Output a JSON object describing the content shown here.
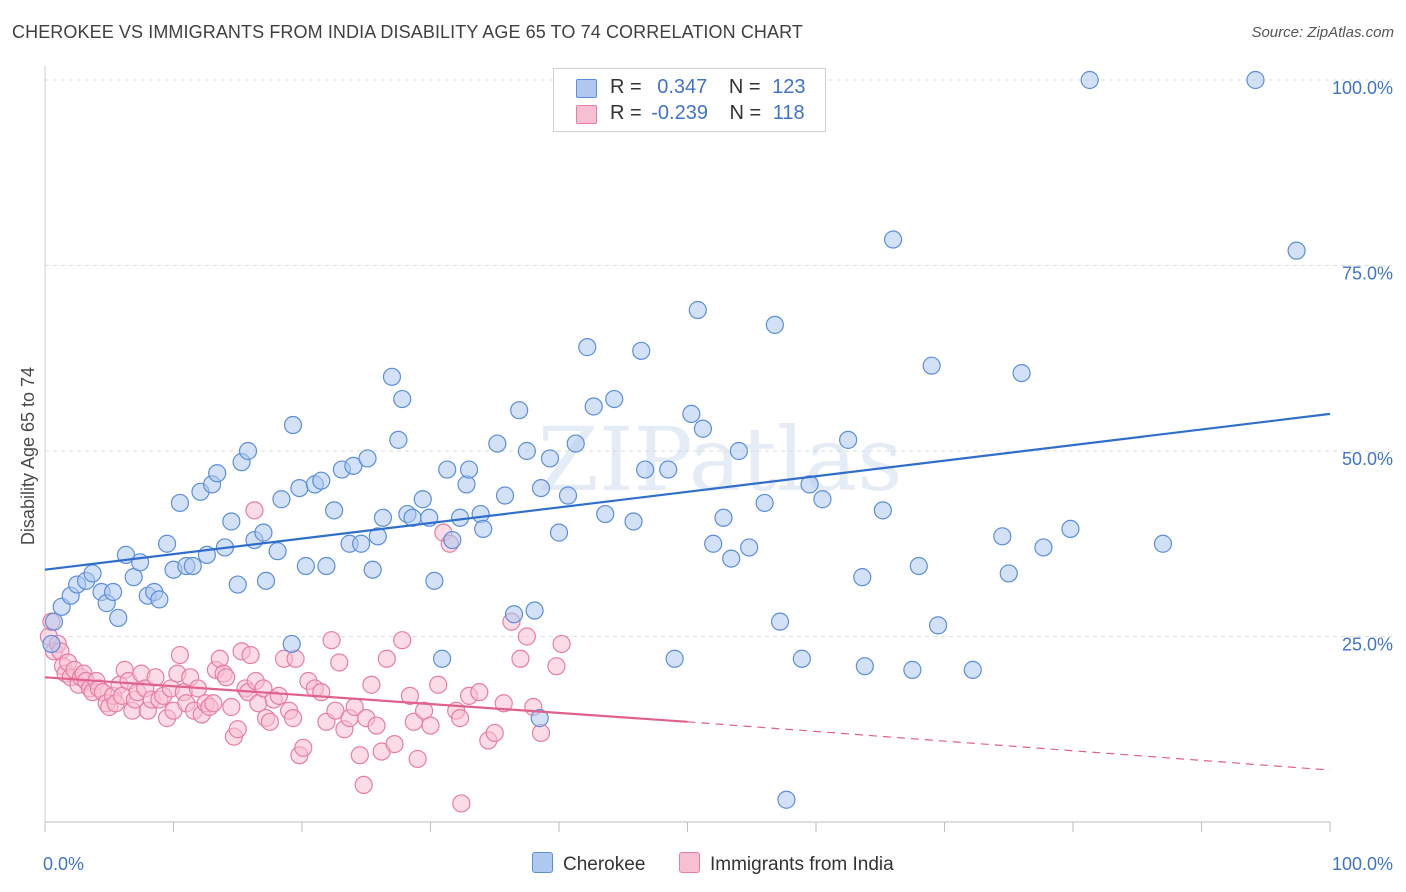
{
  "title": "CHEROKEE VS IMMIGRANTS FROM INDIA DISABILITY AGE 65 TO 74 CORRELATION CHART",
  "source": "Source: ZipAtlas.com",
  "watermark": "ZIPatlas",
  "legend": {
    "rows": [
      {
        "r_label": "R =",
        "r_value": "0.347",
        "n_label": "N =",
        "n_value": "123"
      },
      {
        "r_label": "R =",
        "r_value": "-0.239",
        "n_label": "N =",
        "n_value": "118"
      }
    ]
  },
  "colors": {
    "cherokee_fill": "#aec8f0",
    "cherokee_stroke": "#5b8fd8",
    "cherokee_line": "#2f6fcb",
    "india_fill": "#f7bfd2",
    "india_stroke": "#e77da3",
    "india_line": "#e0608e",
    "tick_text": "#3f74c8",
    "grid": "#dcdcdc"
  },
  "chart_data": {
    "type": "scatter",
    "title": "CHEROKEE VS IMMIGRANTS FROM INDIA DISABILITY AGE 65 TO 74 CORRELATION CHART",
    "xlabel": "",
    "ylabel": "Disability Age 65 to 74",
    "xlim": [
      0,
      100
    ],
    "ylim": [
      0,
      100
    ],
    "x_tick_labels": [
      "0.0%",
      "100.0%"
    ],
    "y_tick_labels": [
      "25.0%",
      "50.0%",
      "75.0%",
      "100.0%"
    ],
    "y_ticks": [
      25,
      50,
      75,
      100
    ],
    "grid": true,
    "legend_position": "top-center",
    "series": [
      {
        "name": "Cherokee",
        "R": 0.347,
        "N": 123,
        "trend": {
          "x": [
            0,
            100
          ],
          "y": [
            34.0,
            55.0
          ],
          "style": "solid"
        },
        "points": [
          [
            0.5,
            24
          ],
          [
            0.7,
            27
          ],
          [
            1.3,
            29
          ],
          [
            2,
            30.5
          ],
          [
            2.5,
            32
          ],
          [
            3.2,
            32.5
          ],
          [
            3.7,
            33.5
          ],
          [
            4.4,
            31
          ],
          [
            4.8,
            29.5
          ],
          [
            5.3,
            31
          ],
          [
            5.7,
            27.5
          ],
          [
            6.3,
            36
          ],
          [
            6.9,
            33
          ],
          [
            7.4,
            35
          ],
          [
            8,
            30.5
          ],
          [
            8.5,
            31
          ],
          [
            8.9,
            30
          ],
          [
            9.5,
            37.5
          ],
          [
            10,
            34
          ],
          [
            10.5,
            43
          ],
          [
            11,
            34.5
          ],
          [
            11.5,
            34.5
          ],
          [
            12.1,
            44.5
          ],
          [
            12.6,
            36
          ],
          [
            13,
            45.5
          ],
          [
            13.4,
            47
          ],
          [
            14,
            37
          ],
          [
            14.5,
            40.5
          ],
          [
            15,
            32
          ],
          [
            15.3,
            48.5
          ],
          [
            15.8,
            50
          ],
          [
            16.3,
            38
          ],
          [
            17,
            39
          ],
          [
            17.2,
            32.5
          ],
          [
            18.1,
            36.5
          ],
          [
            18.4,
            43.5
          ],
          [
            19.2,
            24
          ],
          [
            19.3,
            53.5
          ],
          [
            19.8,
            45
          ],
          [
            20.3,
            34.5
          ],
          [
            21,
            45.5
          ],
          [
            21.5,
            46
          ],
          [
            21.9,
            34.5
          ],
          [
            22.5,
            42
          ],
          [
            23.1,
            47.5
          ],
          [
            23.7,
            37.5
          ],
          [
            24,
            48
          ],
          [
            24.6,
            37.5
          ],
          [
            25.1,
            49
          ],
          [
            25.5,
            34
          ],
          [
            25.9,
            38.5
          ],
          [
            26.3,
            41
          ],
          [
            27,
            60
          ],
          [
            27.5,
            51.5
          ],
          [
            27.8,
            57
          ],
          [
            28.2,
            41.5
          ],
          [
            28.6,
            41
          ],
          [
            29.4,
            43.5
          ],
          [
            29.9,
            41
          ],
          [
            30.3,
            32.5
          ],
          [
            30.9,
            22
          ],
          [
            31.3,
            47.5
          ],
          [
            31.7,
            38
          ],
          [
            32.3,
            41
          ],
          [
            32.8,
            45.5
          ],
          [
            33,
            47.5
          ],
          [
            33.9,
            41.5
          ],
          [
            34.1,
            39.5
          ],
          [
            35.2,
            51
          ],
          [
            35.8,
            44
          ],
          [
            36.5,
            28
          ],
          [
            36.9,
            55.5
          ],
          [
            37.5,
            50
          ],
          [
            38.1,
            28.5
          ],
          [
            38.6,
            45
          ],
          [
            39.3,
            49
          ],
          [
            40,
            39
          ],
          [
            40.7,
            44
          ],
          [
            41.3,
            51
          ],
          [
            42.2,
            64
          ],
          [
            42.7,
            56
          ],
          [
            43.6,
            41.5
          ],
          [
            44.3,
            57
          ],
          [
            45.8,
            40.5
          ],
          [
            46.4,
            63.5
          ],
          [
            46.7,
            47.5
          ],
          [
            48.5,
            47.5
          ],
          [
            49,
            22
          ],
          [
            50.3,
            55
          ],
          [
            50.8,
            69
          ],
          [
            51.2,
            53
          ],
          [
            52,
            37.5
          ],
          [
            52.8,
            41
          ],
          [
            53.4,
            35.5
          ],
          [
            54,
            50
          ],
          [
            54.8,
            37
          ],
          [
            56,
            43
          ],
          [
            56.8,
            67
          ],
          [
            57.2,
            27
          ],
          [
            58.9,
            22
          ],
          [
            59.5,
            45.5
          ],
          [
            60.5,
            43.5
          ],
          [
            62.5,
            51.5
          ],
          [
            63.6,
            33
          ],
          [
            63.8,
            21
          ],
          [
            65.2,
            42
          ],
          [
            66,
            78.5
          ],
          [
            67.5,
            20.5
          ],
          [
            68,
            34.5
          ],
          [
            69,
            61.5
          ],
          [
            69.5,
            26.5
          ],
          [
            72.2,
            20.5
          ],
          [
            74.5,
            38.5
          ],
          [
            75,
            33.5
          ],
          [
            76,
            60.5
          ],
          [
            77.7,
            37
          ],
          [
            79.8,
            39.5
          ],
          [
            81.3,
            100
          ],
          [
            87,
            37.5
          ],
          [
            94.2,
            100
          ],
          [
            97.4,
            77
          ],
          [
            38.5,
            14
          ],
          [
            57.7,
            3
          ]
        ]
      },
      {
        "name": "Immigrants from India",
        "R": -0.239,
        "N": 118,
        "trend": {
          "x": [
            0,
            50
          ],
          "y": [
            19.5,
            13.5
          ],
          "style": "solid",
          "extended": {
            "x": [
              50,
              100
            ],
            "y": [
              13.5,
              7.0
            ],
            "style": "dashed"
          }
        },
        "points": [
          [
            0.3,
            25
          ],
          [
            0.5,
            27
          ],
          [
            0.7,
            23
          ],
          [
            1,
            24
          ],
          [
            1.2,
            23
          ],
          [
            1.4,
            21
          ],
          [
            1.6,
            20
          ],
          [
            1.8,
            21.5
          ],
          [
            2,
            19.5
          ],
          [
            2.3,
            20.5
          ],
          [
            2.6,
            18.5
          ],
          [
            2.8,
            19.5
          ],
          [
            3,
            20
          ],
          [
            3.2,
            19
          ],
          [
            3.5,
            18
          ],
          [
            3.7,
            17.5
          ],
          [
            4,
            19
          ],
          [
            4.2,
            18
          ],
          [
            4.5,
            17.5
          ],
          [
            4.8,
            16
          ],
          [
            5,
            15.5
          ],
          [
            5.3,
            17
          ],
          [
            5.5,
            16
          ],
          [
            5.8,
            18.5
          ],
          [
            6,
            17
          ],
          [
            6.2,
            20.5
          ],
          [
            6.5,
            19
          ],
          [
            6.8,
            15
          ],
          [
            7,
            16.5
          ],
          [
            7.2,
            17.5
          ],
          [
            7.5,
            20
          ],
          [
            7.8,
            18
          ],
          [
            8,
            15
          ],
          [
            8.3,
            16.5
          ],
          [
            8.6,
            19.5
          ],
          [
            8.9,
            16.5
          ],
          [
            9.2,
            17
          ],
          [
            9.5,
            14
          ],
          [
            9.8,
            18
          ],
          [
            10,
            15
          ],
          [
            10.3,
            20
          ],
          [
            10.5,
            22.5
          ],
          [
            10.8,
            17.5
          ],
          [
            11,
            16
          ],
          [
            11.3,
            19.5
          ],
          [
            11.6,
            15
          ],
          [
            11.9,
            18
          ],
          [
            12.2,
            14.5
          ],
          [
            12.5,
            16
          ],
          [
            12.8,
            15.5
          ],
          [
            13.1,
            16
          ],
          [
            13.3,
            20.5
          ],
          [
            13.6,
            22
          ],
          [
            13.9,
            20
          ],
          [
            14.1,
            19.5
          ],
          [
            14.5,
            15.5
          ],
          [
            14.7,
            11.5
          ],
          [
            15,
            12.5
          ],
          [
            15.3,
            23
          ],
          [
            15.6,
            18
          ],
          [
            15.8,
            17.5
          ],
          [
            16,
            22.5
          ],
          [
            16.4,
            19
          ],
          [
            16.6,
            16
          ],
          [
            17,
            18
          ],
          [
            17.2,
            14
          ],
          [
            17.5,
            13.5
          ],
          [
            17.8,
            16.5
          ],
          [
            18.2,
            17
          ],
          [
            18.6,
            22
          ],
          [
            19,
            15
          ],
          [
            19.3,
            14
          ],
          [
            19.5,
            22
          ],
          [
            19.8,
            9
          ],
          [
            20.1,
            10
          ],
          [
            20.5,
            19
          ],
          [
            21,
            18
          ],
          [
            21.5,
            17.5
          ],
          [
            21.9,
            13.5
          ],
          [
            22.3,
            24.5
          ],
          [
            22.6,
            15
          ],
          [
            22.9,
            21.5
          ],
          [
            23.3,
            12.5
          ],
          [
            23.7,
            14
          ],
          [
            24.1,
            15.5
          ],
          [
            24.5,
            9
          ],
          [
            24.8,
            5
          ],
          [
            25,
            14
          ],
          [
            25.4,
            18.5
          ],
          [
            25.8,
            13
          ],
          [
            26.2,
            9.5
          ],
          [
            26.6,
            22
          ],
          [
            27.2,
            10.5
          ],
          [
            27.8,
            24.5
          ],
          [
            28.4,
            17
          ],
          [
            28.7,
            13.5
          ],
          [
            29,
            8.5
          ],
          [
            29.5,
            15
          ],
          [
            30,
            13
          ],
          [
            30.6,
            18.5
          ],
          [
            31,
            39
          ],
          [
            31.5,
            37.5
          ],
          [
            32,
            15
          ],
          [
            32.3,
            14
          ],
          [
            33,
            17
          ],
          [
            33.8,
            17.5
          ],
          [
            34.5,
            11
          ],
          [
            35,
            12
          ],
          [
            35.7,
            16
          ],
          [
            36.3,
            27
          ],
          [
            37,
            22
          ],
          [
            37.5,
            25
          ],
          [
            38,
            15.5
          ],
          [
            38.6,
            12
          ],
          [
            39.8,
            21
          ],
          [
            40.2,
            24
          ],
          [
            32.4,
            2.5
          ],
          [
            16.3,
            42
          ]
        ]
      }
    ]
  }
}
